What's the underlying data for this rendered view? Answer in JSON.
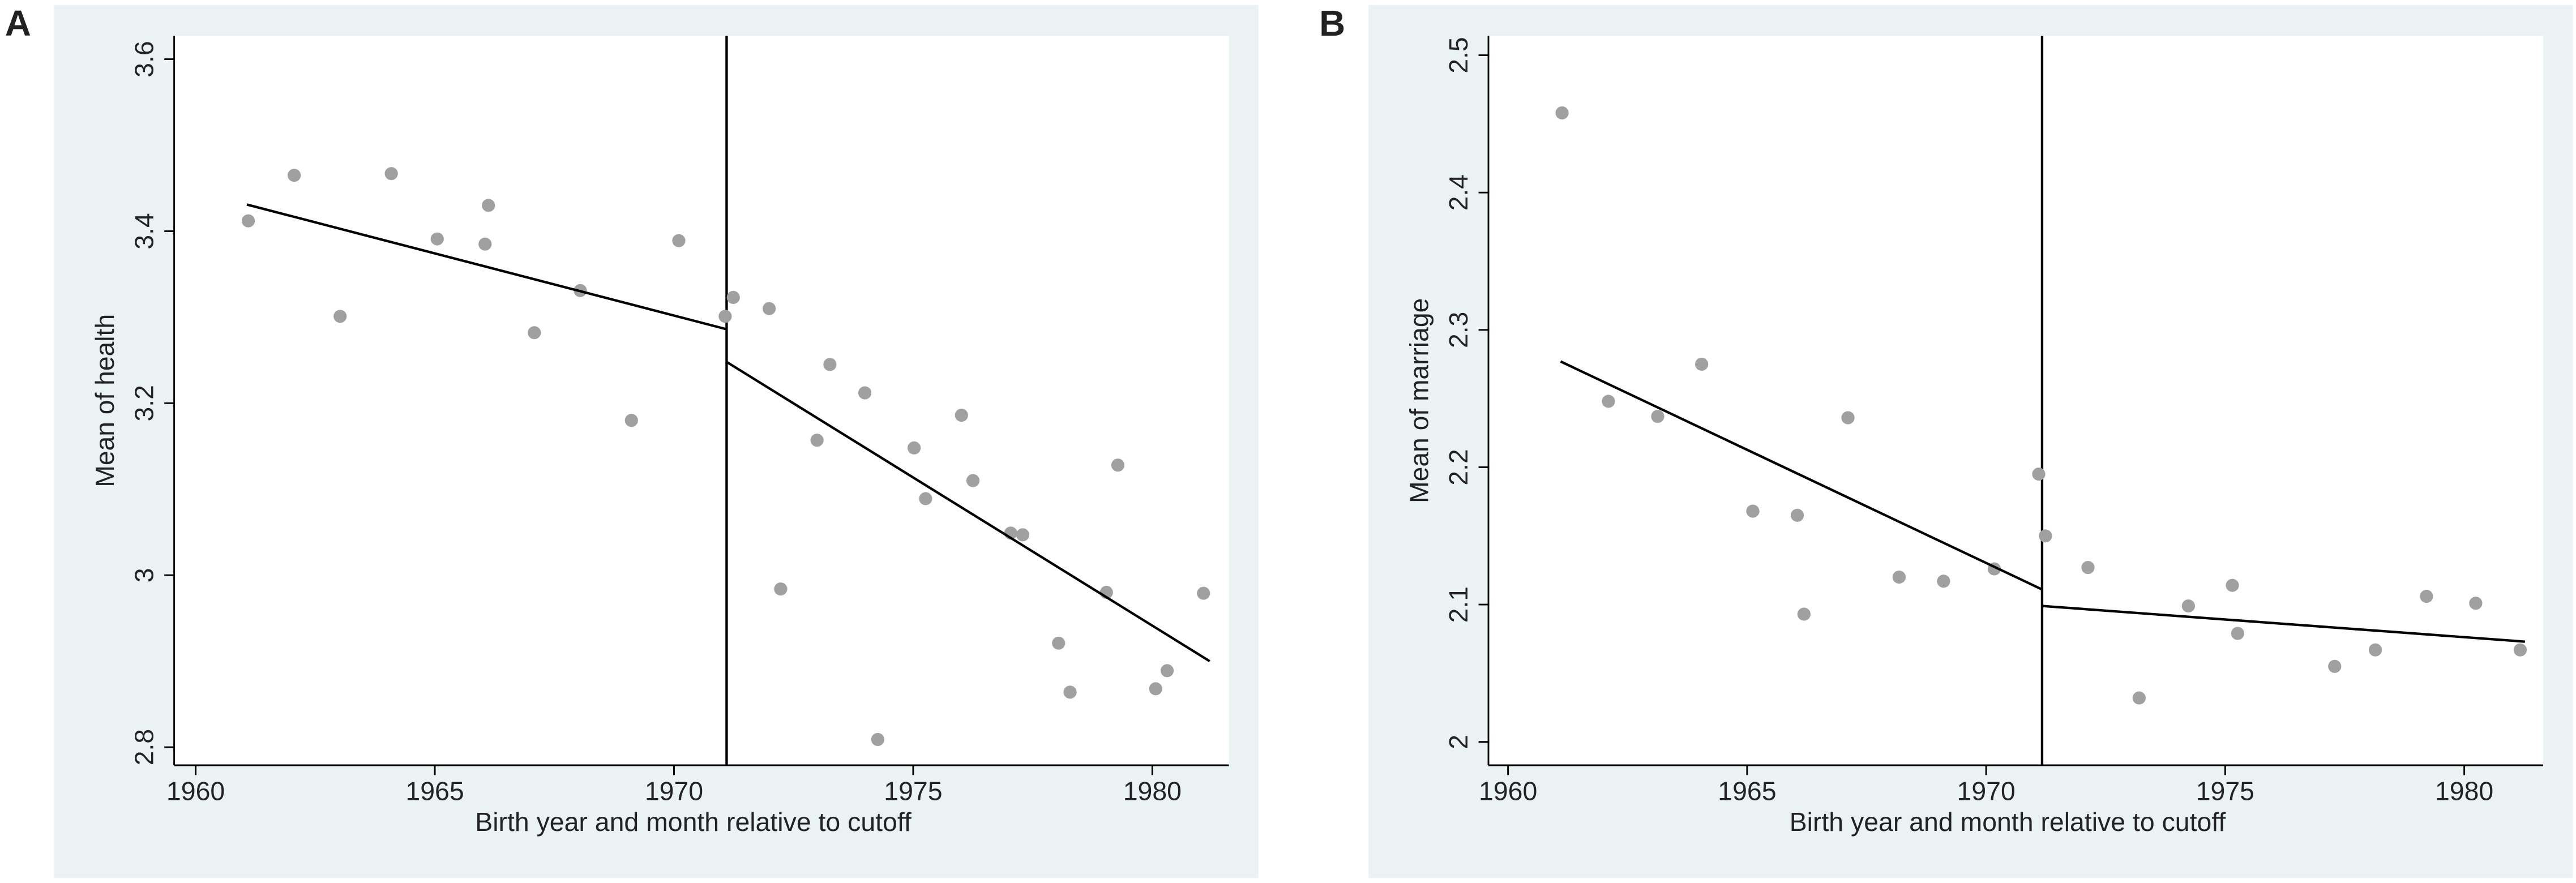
{
  "chart_data": [
    {
      "type": "scatter",
      "panel_label": "A",
      "x_label": "Birth year and month relative to cutoff",
      "y_label": "Mean of health",
      "xlim": [
        1959.55,
        1981.6
      ],
      "ylim": [
        2.779,
        3.627
      ],
      "xticks": [
        1960,
        1965,
        1970,
        1975,
        1980
      ],
      "yticks": [
        2.8,
        3,
        3.2,
        3.4,
        3.6
      ],
      "color": "#a0a0a0",
      "line_color": "#000000",
      "cutoff": 1971.1,
      "x": [
        1961.1,
        1962.06,
        1963.02,
        1964.09,
        1965.05,
        1966.05,
        1966.12,
        1967.08,
        1968.04,
        1969.11,
        1970.1,
        1971.07,
        1971.24,
        1971.99,
        1972.23,
        1972.99,
        1973.26,
        1973.99,
        1974.26,
        1975.02,
        1975.26,
        1976.01,
        1976.25,
        1977.04,
        1977.29,
        1978.04,
        1978.28,
        1979.04,
        1979.28,
        1980.07,
        1980.31,
        1981.07
      ],
      "y": [
        3.412,
        3.465,
        3.301,
        3.467,
        3.391,
        3.385,
        3.43,
        3.282,
        3.331,
        3.18,
        3.389,
        3.301,
        3.323,
        3.31,
        2.984,
        3.157,
        3.245,
        3.212,
        2.809,
        3.148,
        3.089,
        3.186,
        3.11,
        3.049,
        3.047,
        2.921,
        2.864,
        2.98,
        3.128,
        2.868,
        2.889,
        2.979
      ],
      "fit_lines": [
        {
          "x": [
            1961.07,
            1971.1
          ],
          "y": [
            3.431,
            3.286
          ]
        },
        {
          "x": [
            1971.1,
            1981.2
          ],
          "y": [
            3.248,
            2.9
          ]
        }
      ]
    },
    {
      "type": "scatter",
      "panel_label": "B",
      "x_label": "Birth year and month relative to cutoff",
      "y_label": "Mean of marriage",
      "xlim": [
        1959.59,
        1981.65
      ],
      "ylim": [
        1.983,
        2.514
      ],
      "xticks": [
        1960,
        1965,
        1970,
        1975,
        1980
      ],
      "yticks": [
        2,
        2.1,
        2.2,
        2.3,
        2.4,
        2.5
      ],
      "color": "#a0a0a0",
      "line_color": "#000000",
      "cutoff": 1971.17,
      "x": [
        1961.13,
        1962.1,
        1963.13,
        1964.05,
        1965.12,
        1966.05,
        1966.19,
        1967.11,
        1968.18,
        1969.11,
        1970.17,
        1971.1,
        1971.24,
        1972.13,
        1973.2,
        1974.23,
        1975.15,
        1975.26,
        1977.29,
        1978.14,
        1979.21,
        1980.24,
        1981.17
      ],
      "y": [
        2.458,
        2.248,
        2.237,
        2.275,
        2.168,
        2.165,
        2.093,
        2.236,
        2.12,
        2.117,
        2.126,
        2.195,
        2.15,
        2.127,
        2.032,
        2.099,
        2.114,
        2.079,
        2.055,
        2.067,
        2.106,
        2.101,
        2.067
      ],
      "fit_lines": [
        {
          "x": [
            1961.1,
            1971.17
          ],
          "y": [
            2.277,
            2.111
          ]
        },
        {
          "x": [
            1971.17,
            1981.27
          ],
          "y": [
            2.099,
            2.073
          ]
        }
      ]
    }
  ]
}
